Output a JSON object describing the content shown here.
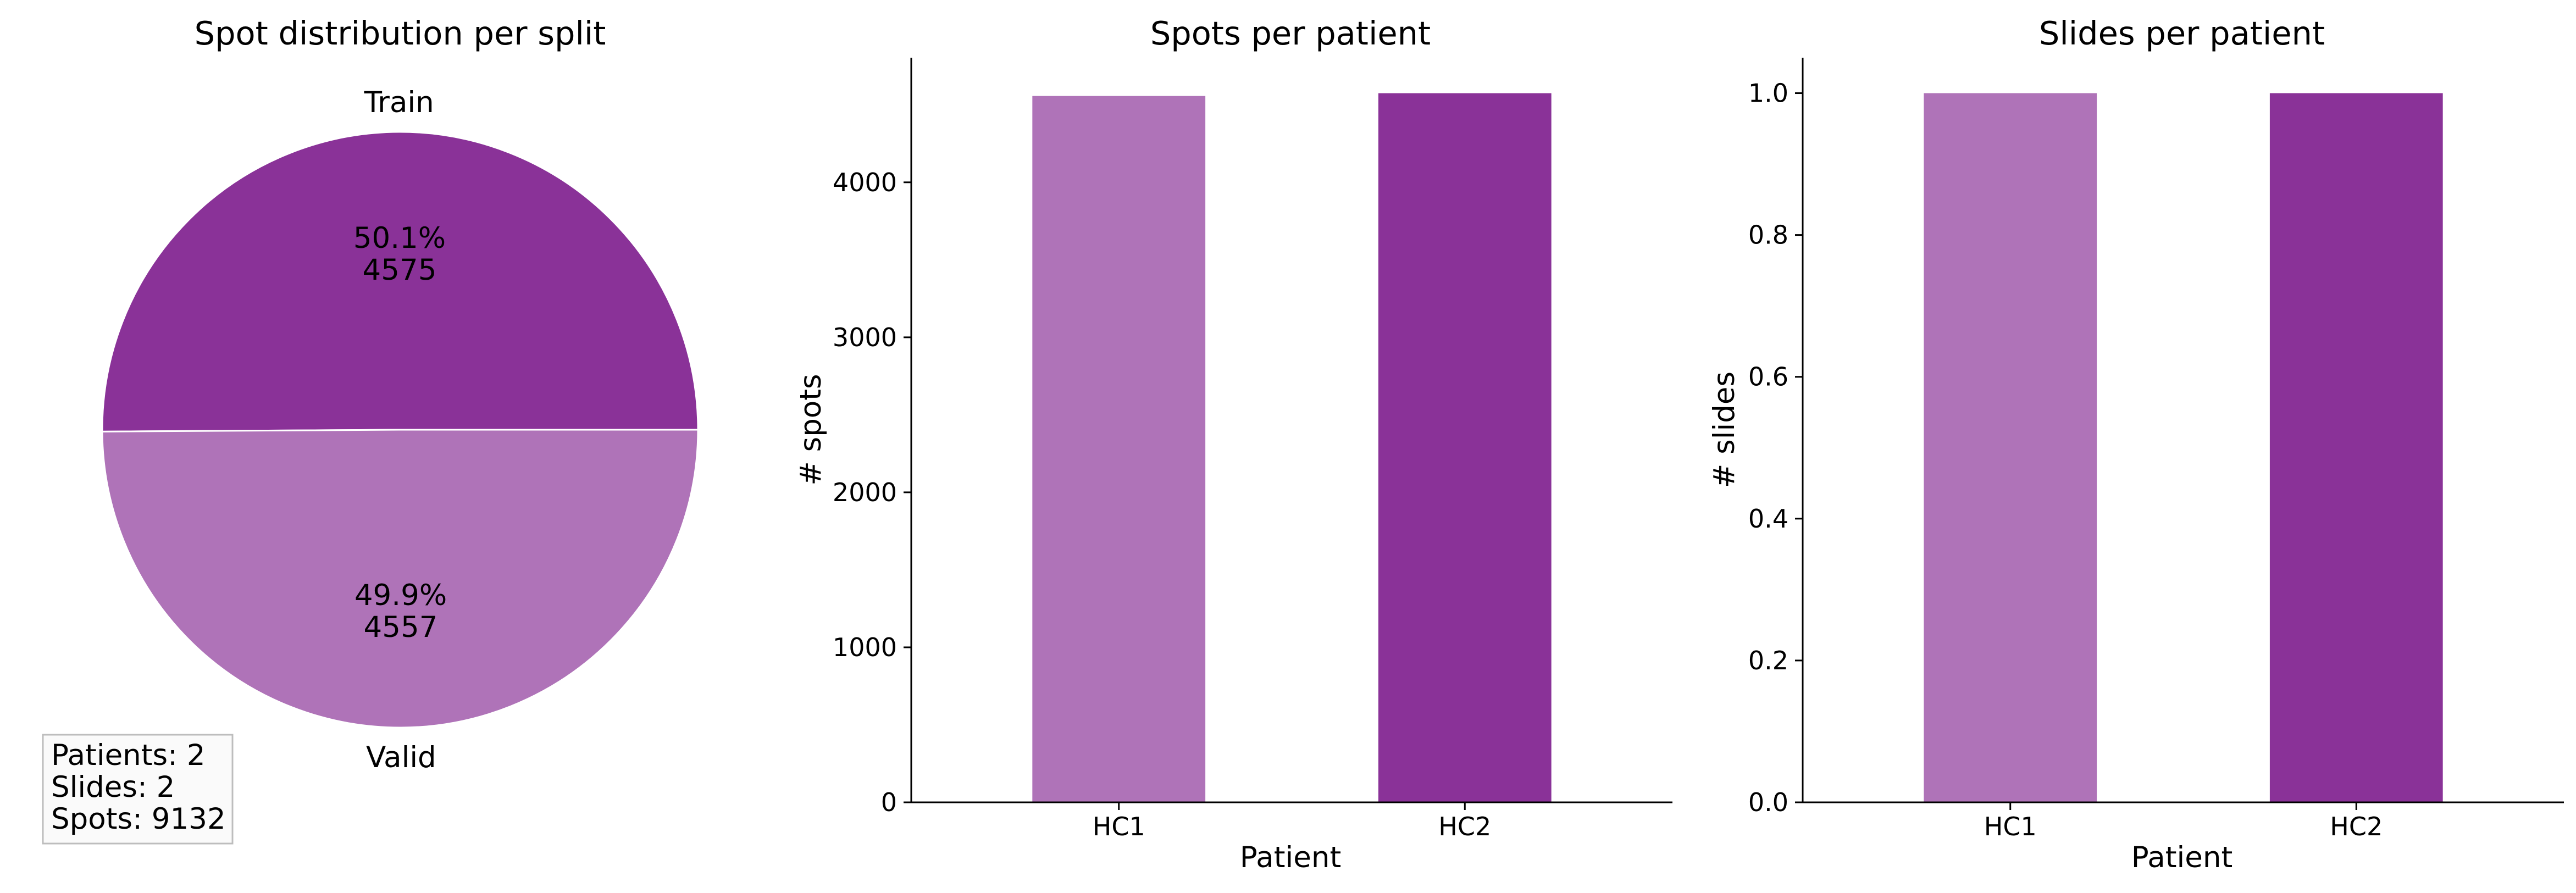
{
  "colors": {
    "train": "#8a3298",
    "valid": "#af73b8"
  },
  "stats": {
    "patients": "Patients: 2",
    "slides": "Slides: 2",
    "spots": "Spots: 9132"
  },
  "chart_data": [
    {
      "type": "pie",
      "title": "Spot distribution per split",
      "slices": [
        {
          "label": "Train",
          "value": 4575,
          "pct": "50.1%",
          "count": "4575",
          "color": "#8a3298"
        },
        {
          "label": "Valid",
          "value": 4557,
          "pct": "49.9%",
          "count": "4557",
          "color": "#af73b8"
        }
      ]
    },
    {
      "type": "bar",
      "title": "Spots per patient",
      "xlabel": "Patient",
      "ylabel": "# spots",
      "categories": [
        "HC1",
        "HC2"
      ],
      "values": [
        4557,
        4575
      ],
      "colors": [
        "#af73b8",
        "#8a3298"
      ],
      "ylim": [
        0,
        4804
      ],
      "yticks": [
        0,
        1000,
        2000,
        3000,
        4000
      ],
      "ytick_labels": [
        "0",
        "1000",
        "2000",
        "3000",
        "4000"
      ]
    },
    {
      "type": "bar",
      "title": "Slides per patient",
      "xlabel": "Patient",
      "ylabel": "# slides",
      "categories": [
        "HC1",
        "HC2"
      ],
      "values": [
        1,
        1
      ],
      "colors": [
        "#af73b8",
        "#8a3298"
      ],
      "ylim": [
        0,
        1.05
      ],
      "yticks": [
        0,
        0.2,
        0.4,
        0.6,
        0.8,
        1.0
      ],
      "ytick_labels": [
        "0.0",
        "0.2",
        "0.4",
        "0.6",
        "0.8",
        "1.0"
      ]
    }
  ]
}
